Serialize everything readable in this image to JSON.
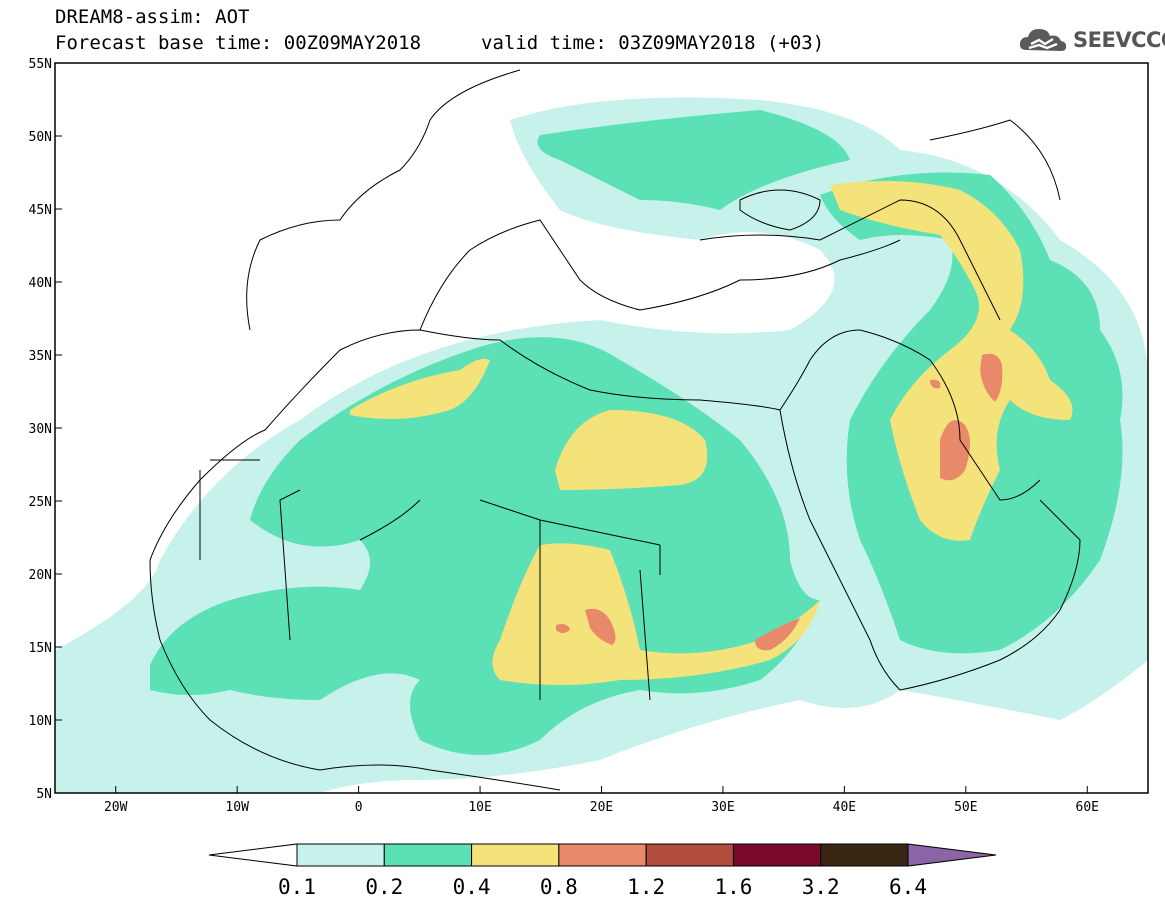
{
  "header": {
    "title": "DREAM8-assim: AOT",
    "base_time": "Forecast base time: 00Z09MAY2018",
    "valid_time": "valid time: 03Z09MAY2018 (+03)"
  },
  "logo": {
    "text": "SEEVCCC",
    "icon": "cloud-icon"
  },
  "map": {
    "lat_ticks": [
      "55N",
      "50N",
      "45N",
      "40N",
      "35N",
      "30N",
      "25N",
      "20N",
      "15N",
      "10N",
      "5N"
    ],
    "lon_ticks": [
      "20W",
      "10W",
      "0",
      "10E",
      "20E",
      "30E",
      "40E",
      "50E",
      "60E"
    ],
    "lat_range": [
      5,
      55
    ],
    "lon_range": [
      -25,
      65
    ]
  },
  "colorbar": {
    "labels": [
      "0.1",
      "0.2",
      "0.4",
      "0.8",
      "1.2",
      "1.6",
      "3.2",
      "6.4"
    ],
    "colors": [
      "#ffffff",
      "#c6f2eb",
      "#5ce0b5",
      "#f3e37a",
      "#e8896a",
      "#b24c3c",
      "#7a0a2a",
      "#3a2412",
      "#8a64a6"
    ]
  }
}
